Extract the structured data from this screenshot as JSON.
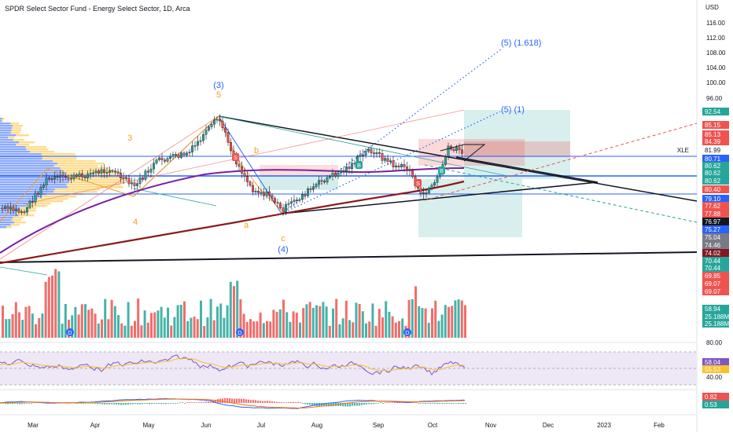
{
  "header": {
    "title": "SPDR Select Sector Fund - Energy Select Sector, 1D, Arca",
    "currency": "USD"
  },
  "price_axis": {
    "ticks": [
      "116.00",
      "112.00",
      "108.00",
      "104.00",
      "100.00",
      "96.00",
      "80.00",
      "40.00"
    ],
    "symbol_label": "XLE",
    "last_price": "81.99"
  },
  "price_badges": [
    {
      "text": "92.54",
      "color": "#26a69a"
    },
    {
      "text": "85.15",
      "color": "#ef5350"
    },
    {
      "text": "85.13",
      "color": "#ef5350"
    },
    {
      "text": "84.39",
      "color": "#ef5350"
    },
    {
      "text": "80.71",
      "color": "#2962ff"
    },
    {
      "text": "80.62",
      "color": "#26a69a"
    },
    {
      "text": "80.62",
      "color": "#26a69a"
    },
    {
      "text": "80.62",
      "color": "#26a69a"
    },
    {
      "text": "80.40",
      "color": "#ef5350"
    },
    {
      "text": "79.10",
      "color": "#2962ff"
    },
    {
      "text": "77.62",
      "color": "#ef5350"
    },
    {
      "text": "77.88",
      "color": "#ef5350"
    },
    {
      "text": "76.97",
      "color": "#131722"
    },
    {
      "text": "75.27",
      "color": "#2962ff"
    },
    {
      "text": "75.04",
      "color": "#787b86"
    },
    {
      "text": "74.46",
      "color": "#787b86"
    },
    {
      "text": "74.02",
      "color": "#801922"
    },
    {
      "text": "70.44",
      "color": "#26a69a"
    },
    {
      "text": "70.44",
      "color": "#26a69a"
    },
    {
      "text": "69.85",
      "color": "#ef5350"
    },
    {
      "text": "69.07",
      "color": "#ef5350"
    },
    {
      "text": "69.07",
      "color": "#ef5350"
    },
    {
      "text": "58.94",
      "color": "#26a69a"
    },
    {
      "text": "25.188M",
      "color": "#26a69a"
    },
    {
      "text": "25.188M",
      "color": "#26a69a"
    },
    {
      "text": "58.04",
      "color": "#7e57c2"
    },
    {
      "text": "55.53",
      "color": "#fbc02d"
    },
    {
      "text": "0.82",
      "color": "#ef5350"
    },
    {
      "text": "0.53",
      "color": "#26a69a"
    }
  ],
  "time_axis": [
    "Mar",
    "Apr",
    "May",
    "Jun",
    "Jul",
    "Aug",
    "Sep",
    "Oct",
    "Nov",
    "Dec",
    "2023",
    "Feb"
  ],
  "wave_labels": [
    "(3)",
    "5",
    "3",
    "b",
    "4",
    "a",
    "c",
    "(4)",
    "(5) (1.618)",
    "(5) (1)"
  ],
  "markers": {
    "dividend": "D",
    "buy": "B",
    "sell": "S"
  },
  "colors": {
    "up": "#26a69a",
    "down": "#ef5350",
    "wave_blue": "#2962ff",
    "wave_orange": "#f7a21b",
    "ma_purple": "#7b1fa2",
    "ma_red": "#b71c1c",
    "rsi_bg": "#ede7f6"
  }
}
